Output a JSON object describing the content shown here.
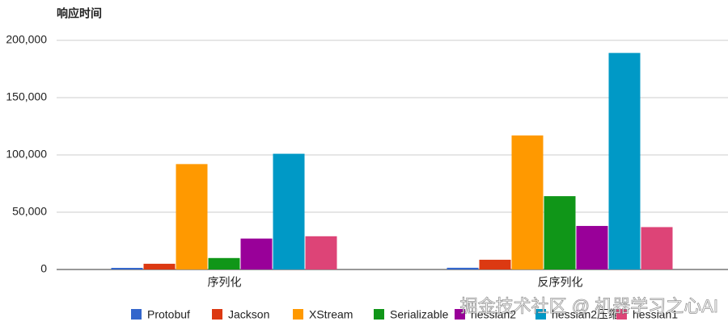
{
  "chart_data": {
    "type": "bar",
    "title": "响应时间",
    "categories": [
      "序列化",
      "反序列化"
    ],
    "series": [
      {
        "name": "Protobuf",
        "color": "#3366cc",
        "values": [
          1400,
          1500
        ]
      },
      {
        "name": "Jackson",
        "color": "#dc3912",
        "values": [
          5000,
          8500
        ]
      },
      {
        "name": "XStream",
        "color": "#ff9900",
        "values": [
          92000,
          117000
        ]
      },
      {
        "name": "Serializable",
        "color": "#109618",
        "values": [
          10000,
          64000
        ]
      },
      {
        "name": "hessian2",
        "color": "#990099",
        "values": [
          27000,
          38000
        ]
      },
      {
        "name": "hessian2压缩",
        "color": "#0099c6",
        "values": [
          101000,
          189000
        ]
      },
      {
        "name": "hessian1",
        "color": "#dd4477",
        "values": [
          29000,
          37000
        ]
      }
    ],
    "ylim": [
      0,
      200000
    ],
    "yticks": [
      0,
      {
        "value": 50000,
        "label": "50,000"
      },
      {
        "value": 100000,
        "label": "100,000"
      },
      {
        "value": 150000,
        "label": "150,000"
      },
      {
        "value": 200000,
        "label": "200,000"
      }
    ],
    "grid": true,
    "legend": "bottom",
    "watermark": "掘金技术社区 @ 机器学习之心AI"
  }
}
